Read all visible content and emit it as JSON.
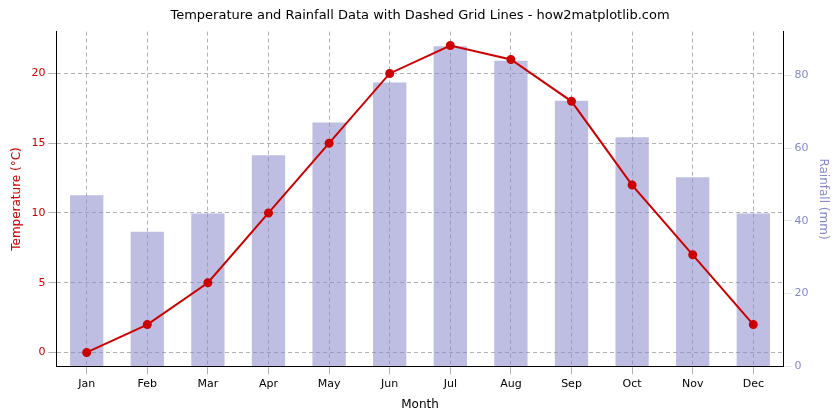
{
  "chart_data": {
    "type": "bar",
    "title": "Temperature and Rainfall Data with Dashed Grid Lines - how2matplotlib.com",
    "xlabel": "Month",
    "ylabel": "Temperature (°C)",
    "y2label": "Rainfall (mm)",
    "categories": [
      "Jan",
      "Feb",
      "Mar",
      "Apr",
      "May",
      "Jun",
      "Jul",
      "Aug",
      "Sep",
      "Oct",
      "Nov",
      "Dec"
    ],
    "series": [
      {
        "type": "bar",
        "axis": "y2",
        "color": "#8888cc",
        "values": [
          47,
          37,
          42,
          58,
          67,
          78,
          88,
          84,
          73,
          63,
          52,
          42
        ]
      },
      {
        "type": "line",
        "axis": "y",
        "color": "#cc0000",
        "marker": "circle",
        "values": [
          0,
          2,
          5,
          10,
          15,
          20,
          22,
          21,
          18,
          12,
          7,
          2
        ]
      }
    ],
    "ylim": [
      -1,
      23
    ],
    "yticks": [
      0,
      5,
      10,
      15,
      20
    ],
    "y2lim": [
      0,
      92
    ],
    "y2ticks": [
      0,
      20,
      40,
      60,
      80
    ],
    "grid": true
  }
}
